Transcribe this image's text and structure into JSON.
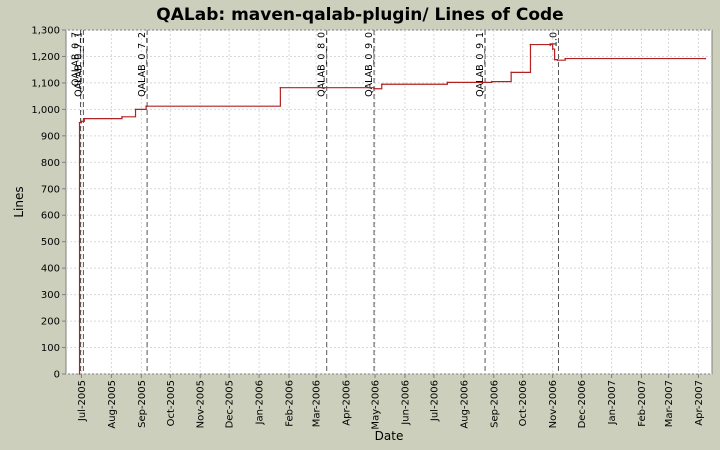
{
  "chart_data": {
    "type": "line",
    "title": "QALab: maven-qalab-plugin/ Lines of Code",
    "xlabel": "Date",
    "ylabel": "Lines",
    "ylim": [
      0,
      1300
    ],
    "yticks": [
      {
        "value": 0,
        "label": "0"
      },
      {
        "value": 100,
        "label": "100"
      },
      {
        "value": 200,
        "label": "200"
      },
      {
        "value": 300,
        "label": "300"
      },
      {
        "value": 400,
        "label": "400"
      },
      {
        "value": 500,
        "label": "500"
      },
      {
        "value": 600,
        "label": "600"
      },
      {
        "value": 700,
        "label": "700"
      },
      {
        "value": 800,
        "label": "800"
      },
      {
        "value": 900,
        "label": "900"
      },
      {
        "value": 1000,
        "label": "1,000"
      },
      {
        "value": 1100,
        "label": "1,100"
      },
      {
        "value": 1200,
        "label": "1,200"
      },
      {
        "value": 1300,
        "label": "1,300"
      }
    ],
    "xlim": [
      "2005-06-15",
      "2007-04-15"
    ],
    "xticks": [
      {
        "date": "2005-07-01",
        "label": "Jul-2005"
      },
      {
        "date": "2005-08-01",
        "label": "Aug-2005"
      },
      {
        "date": "2005-09-01",
        "label": "Sep-2005"
      },
      {
        "date": "2005-10-01",
        "label": "Oct-2005"
      },
      {
        "date": "2005-11-01",
        "label": "Nov-2005"
      },
      {
        "date": "2005-12-01",
        "label": "Dec-2005"
      },
      {
        "date": "2006-01-01",
        "label": "Jan-2006"
      },
      {
        "date": "2006-02-01",
        "label": "Feb-2006"
      },
      {
        "date": "2006-03-01",
        "label": "Mar-2006"
      },
      {
        "date": "2006-04-01",
        "label": "Apr-2006"
      },
      {
        "date": "2006-05-01",
        "label": "May-2006"
      },
      {
        "date": "2006-06-01",
        "label": "Jun-2006"
      },
      {
        "date": "2006-07-01",
        "label": "Jul-2006"
      },
      {
        "date": "2006-08-01",
        "label": "Aug-2006"
      },
      {
        "date": "2006-09-01",
        "label": "Sep-2006"
      },
      {
        "date": "2006-10-01",
        "label": "Oct-2006"
      },
      {
        "date": "2006-11-01",
        "label": "Nov-2006"
      },
      {
        "date": "2006-12-01",
        "label": "Dec-2006"
      },
      {
        "date": "2007-01-01",
        "label": "Jan-2007"
      },
      {
        "date": "2007-02-01",
        "label": "Feb-2007"
      },
      {
        "date": "2007-03-01",
        "label": "Mar-2007"
      },
      {
        "date": "2007-04-01",
        "label": "Apr-2007"
      }
    ],
    "grid": true,
    "legend": "none",
    "series": [
      {
        "color": "#b22222",
        "step": true,
        "points": [
          {
            "date": "2005-06-29",
            "value": 0
          },
          {
            "date": "2005-06-29",
            "value": 950
          },
          {
            "date": "2005-07-01",
            "value": 955
          },
          {
            "date": "2005-07-04",
            "value": 965
          },
          {
            "date": "2005-08-12",
            "value": 972
          },
          {
            "date": "2005-08-26",
            "value": 1000
          },
          {
            "date": "2005-09-06",
            "value": 1012
          },
          {
            "date": "2006-01-23",
            "value": 1082
          },
          {
            "date": "2006-04-30",
            "value": 1078
          },
          {
            "date": "2006-05-08",
            "value": 1095
          },
          {
            "date": "2006-07-15",
            "value": 1102
          },
          {
            "date": "2006-08-30",
            "value": 1105
          },
          {
            "date": "2006-09-19",
            "value": 1140
          },
          {
            "date": "2006-10-09",
            "value": 1245
          },
          {
            "date": "2006-11-01",
            "value": 1228
          },
          {
            "date": "2006-11-03",
            "value": 1188
          },
          {
            "date": "2006-11-06",
            "value": 1186
          },
          {
            "date": "2006-11-14",
            "value": 1192
          },
          {
            "date": "2007-04-08",
            "value": 1192
          }
        ]
      }
    ],
    "annotations": [
      {
        "date": "2005-06-30",
        "label": "QALAB_0_7"
      },
      {
        "date": "2005-07-03",
        "label": "QALAB_0_7_1"
      },
      {
        "date": "2005-09-07",
        "label": "QALAB_0_7_2"
      },
      {
        "date": "2006-03-12",
        "label": "QALAB_0_8_0"
      },
      {
        "date": "2006-04-30",
        "label": "QALAB_0_9_0"
      },
      {
        "date": "2006-08-23",
        "label": "QALAB_0_9_1"
      },
      {
        "date": "2006-11-07",
        "label": "1.0"
      }
    ],
    "colors": {
      "background": "#cccfbb",
      "plot_background": "#ffffff",
      "gridline": "#d8d8d8",
      "series": "#b22222",
      "annotation": "#555555"
    }
  }
}
